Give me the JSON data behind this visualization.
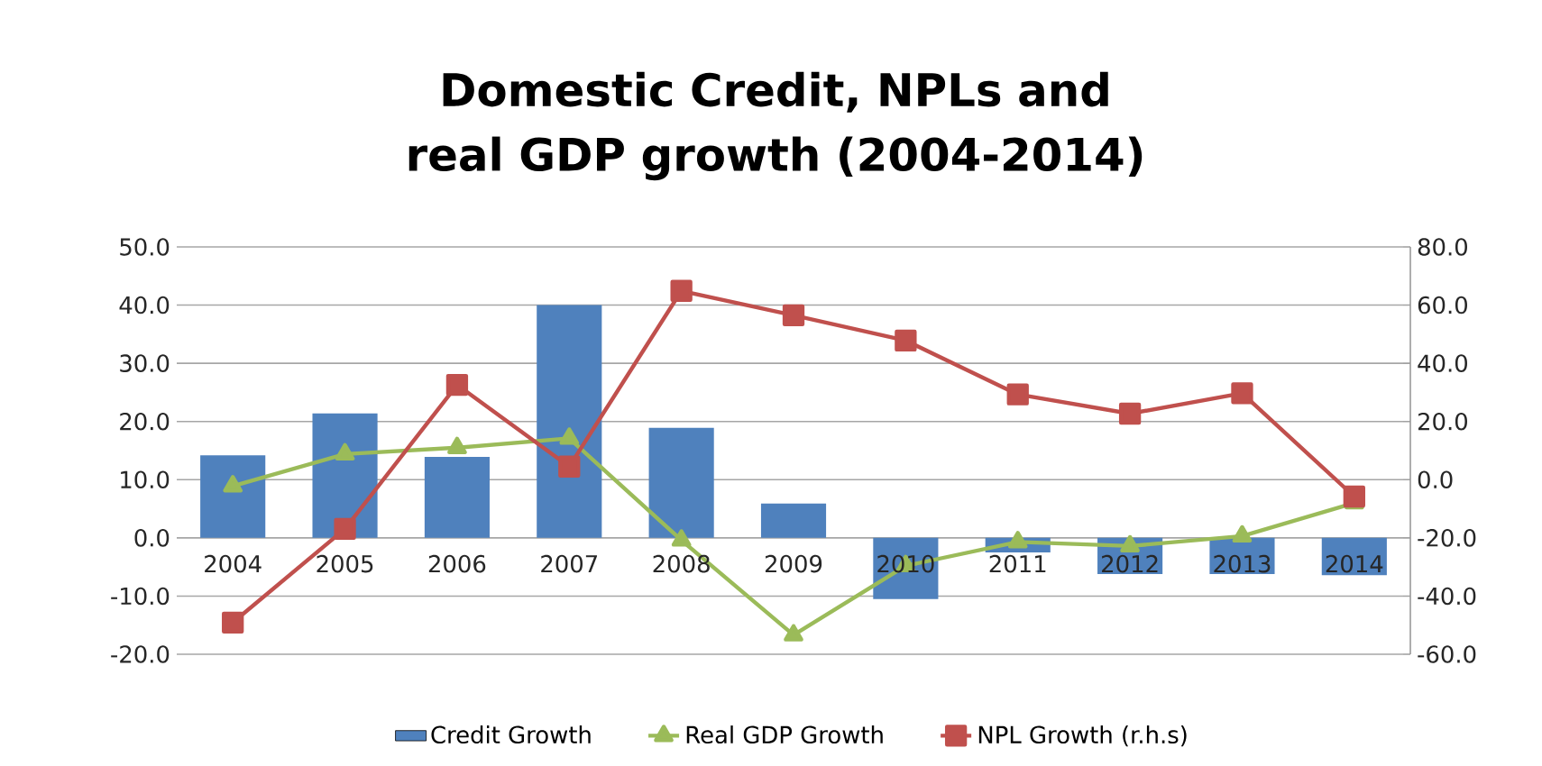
{
  "chart_data": {
    "type": "bar",
    "title": "Domestic Credit, NPLs and real GDP growth (2004-2014)",
    "categories": [
      "2004",
      "2005",
      "2006",
      "2007",
      "2008",
      "2009",
      "2010",
      "2011",
      "2012",
      "2013",
      "2014"
    ],
    "series": [
      {
        "name": "Credit Growth",
        "color": "#4f81bd",
        "values": [
          14.2,
          21.4,
          13.9,
          40.0,
          18.9,
          5.9,
          -10.5,
          -2.5,
          -6.2,
          -6.2,
          -6.4
        ]
      },
      {
        "name": "Real GDP Growth",
        "type": "line",
        "color": "#9bbb59",
        "marker": "triangle",
        "values": [
          8.9,
          14.4,
          15.5,
          17.1,
          -0.4,
          -16.7,
          -4.8,
          -0.7,
          -1.4,
          0.3,
          6.0
        ]
      },
      {
        "name": "NPL Growth (r.h.s)",
        "type": "line",
        "axis": "y2",
        "color": "#c0504d",
        "marker": "square",
        "values": [
          -49.1,
          -16.9,
          32.6,
          4.5,
          64.9,
          56.5,
          47.8,
          29.3,
          22.7,
          29.7,
          -5.8
        ]
      }
    ],
    "ylim": [
      -20,
      50
    ],
    "yticks": [
      {
        "value": -20,
        "label": "-20.0"
      },
      {
        "value": -10,
        "label": "-10.0"
      },
      {
        "value": 0,
        "label": "0.0"
      },
      {
        "value": 10,
        "label": "10.0"
      },
      {
        "value": 20,
        "label": "20.0"
      },
      {
        "value": 30,
        "label": "30.0"
      },
      {
        "value": 40,
        "label": "40.0"
      },
      {
        "value": 50,
        "label": "50.0"
      }
    ],
    "y2lim": [
      -60,
      80
    ],
    "y2ticks": [
      {
        "value": -60,
        "label": "-60.0"
      },
      {
        "value": -40,
        "label": "-40.0"
      },
      {
        "value": -20,
        "label": "-20.0"
      },
      {
        "value": 0,
        "label": "0.0"
      },
      {
        "value": 20,
        "label": "20.0"
      },
      {
        "value": 40,
        "label": "40.0"
      },
      {
        "value": 60,
        "label": "60.0"
      },
      {
        "value": 80,
        "label": "80.0"
      }
    ],
    "grid": "y",
    "legend": "bottom"
  }
}
